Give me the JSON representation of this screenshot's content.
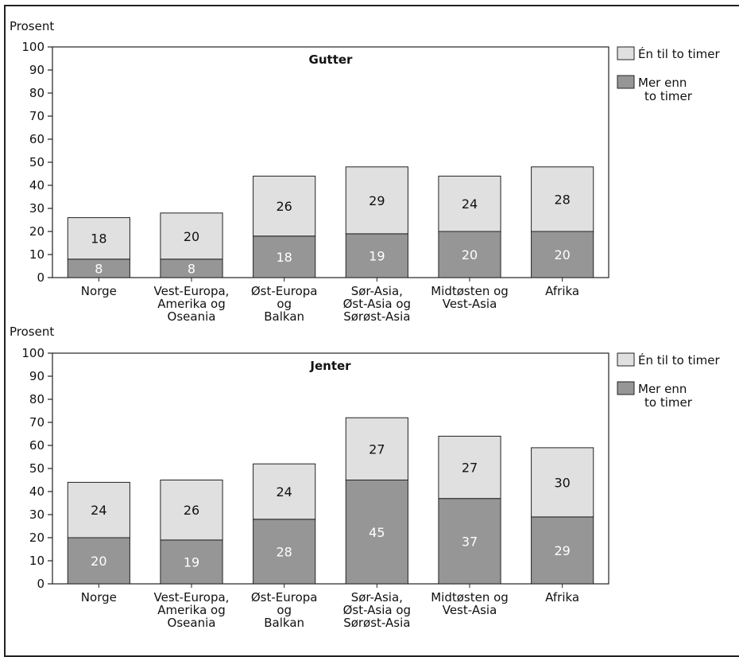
{
  "chart_data": [
    {
      "type": "bar",
      "stacked": true,
      "title": "Gutter",
      "ylabel": "Prosent",
      "ylim": [
        0,
        100
      ],
      "yticks": [
        0,
        10,
        20,
        30,
        40,
        50,
        60,
        70,
        80,
        90,
        100
      ],
      "grid": false,
      "legend_position": "right",
      "categories": [
        [
          "Norge"
        ],
        [
          "Vest-Europa,",
          "Amerika og",
          "Oseania"
        ],
        [
          "Øst-Europa",
          "og",
          "Balkan"
        ],
        [
          "Sør-Asia,",
          "Øst-Asia og",
          "Sørøst-Asia"
        ],
        [
          "Midtøsten og",
          "Vest-Asia"
        ],
        [
          "Afrika"
        ]
      ],
      "series": [
        {
          "name": "Mer enn to timer",
          "legend_lines": [
            "Mer enn",
            "to timer"
          ],
          "color": "#969696",
          "label_color": "#ffffff",
          "values": [
            8,
            8,
            18,
            19,
            20,
            20
          ]
        },
        {
          "name": "Én til to timer",
          "legend_lines": [
            "Én til to timer"
          ],
          "color": "#e0e0e0",
          "label_color": "#111111",
          "values": [
            18,
            20,
            26,
            29,
            24,
            28
          ]
        }
      ]
    },
    {
      "type": "bar",
      "stacked": true,
      "title": "Jenter",
      "ylabel": "Prosent",
      "ylim": [
        0,
        100
      ],
      "yticks": [
        0,
        10,
        20,
        30,
        40,
        50,
        60,
        70,
        80,
        90,
        100
      ],
      "grid": false,
      "legend_position": "right",
      "categories": [
        [
          "Norge"
        ],
        [
          "Vest-Europa,",
          "Amerika og",
          "Oseania"
        ],
        [
          "Øst-Europa",
          "og",
          "Balkan"
        ],
        [
          "Sør-Asia,",
          "Øst-Asia og",
          "Sørøst-Asia"
        ],
        [
          "Midtøsten og",
          "Vest-Asia"
        ],
        [
          "Afrika"
        ]
      ],
      "series": [
        {
          "name": "Mer enn to timer",
          "legend_lines": [
            "Mer enn",
            "to timer"
          ],
          "color": "#969696",
          "label_color": "#ffffff",
          "values": [
            20,
            19,
            28,
            45,
            37,
            29
          ]
        },
        {
          "name": "Én til to timer",
          "legend_lines": [
            "Én til to timer"
          ],
          "color": "#e0e0e0",
          "label_color": "#111111",
          "values": [
            24,
            26,
            24,
            27,
            27,
            30
          ]
        }
      ]
    }
  ]
}
